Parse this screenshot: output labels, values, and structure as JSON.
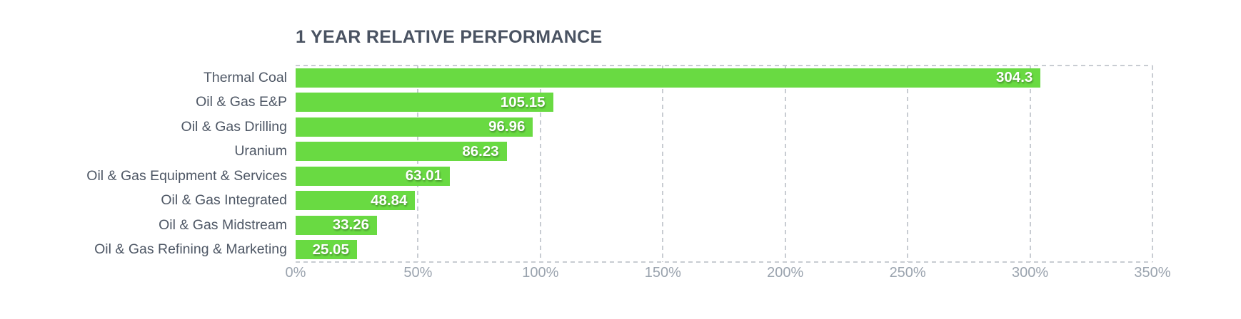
{
  "chart_data": {
    "type": "bar",
    "orientation": "horizontal",
    "title": "1 YEAR RELATIVE PERFORMANCE",
    "categories": [
      "Thermal Coal",
      "Oil & Gas E&P",
      "Oil & Gas Drilling",
      "Uranium",
      "Oil & Gas Equipment & Services",
      "Oil & Gas Integrated",
      "Oil & Gas Midstream",
      "Oil & Gas Refining & Marketing"
    ],
    "values": [
      304.3,
      105.15,
      96.96,
      86.23,
      63.01,
      48.84,
      33.26,
      25.05
    ],
    "value_labels": [
      "304.3",
      "105.15",
      "96.96",
      "86.23",
      "63.01",
      "48.84",
      "33.26",
      "25.05"
    ],
    "x_ticks": [
      {
        "value": 0,
        "label": "0%"
      },
      {
        "value": 50,
        "label": "50%"
      },
      {
        "value": 100,
        "label": "100%"
      },
      {
        "value": 150,
        "label": "150%"
      },
      {
        "value": 200,
        "label": "200%"
      },
      {
        "value": 250,
        "label": "250%"
      },
      {
        "value": 300,
        "label": "300%"
      },
      {
        "value": 350,
        "label": "350%"
      }
    ],
    "xlim": [
      0,
      350
    ],
    "grid": "dashed",
    "legend": "none",
    "colors": {
      "bar": "#69da42",
      "title": "#4a5362",
      "category_label": "#4e5765",
      "tick_label": "#9aa3ae",
      "gridline": "#c8ccd2",
      "value_label": "#ffffff"
    }
  }
}
